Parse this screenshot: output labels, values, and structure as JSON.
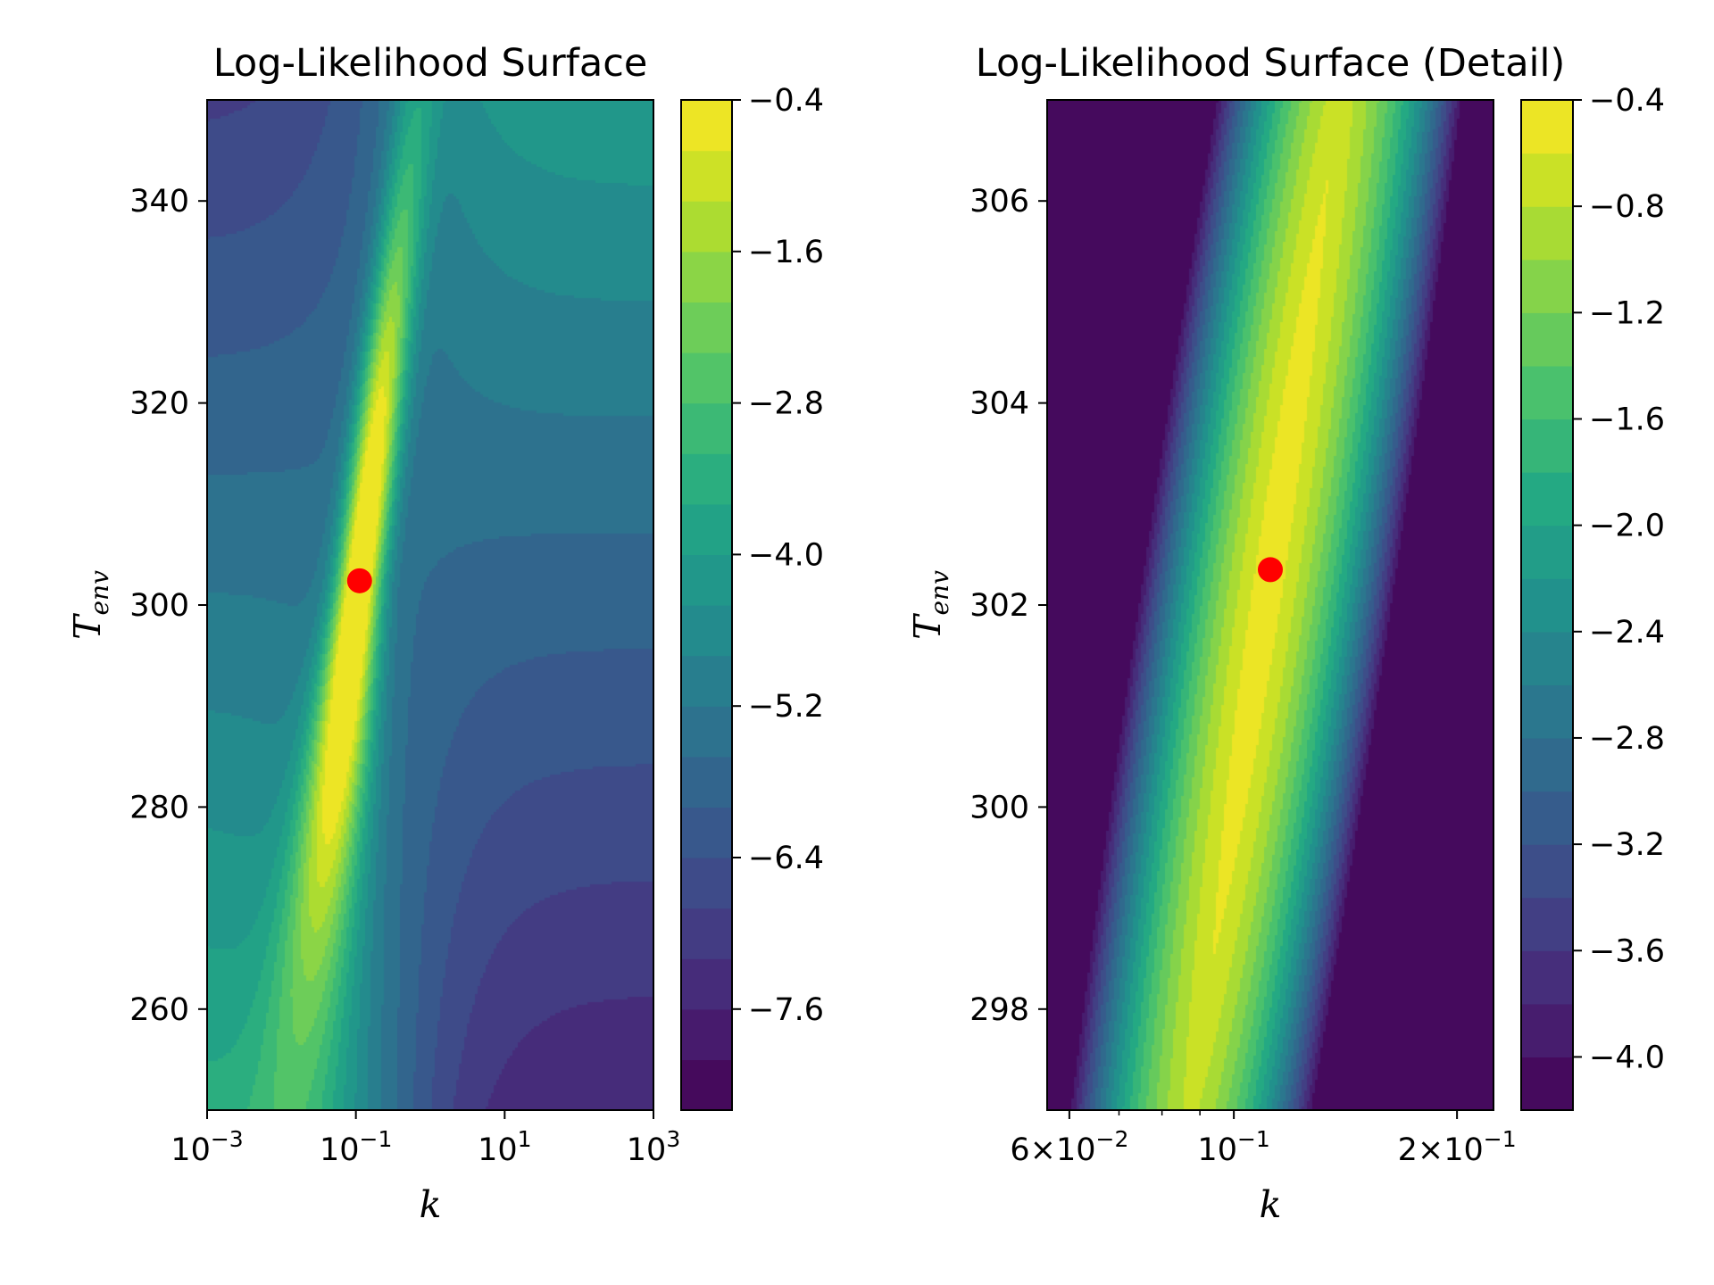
{
  "chart_data": [
    {
      "type": "contourf",
      "title": "Log-Likelihood Surface",
      "xlabel": "k",
      "ylabel": "T",
      "ylabel_sub": "env",
      "xscale": "log",
      "xlim": [
        0.001,
        1000
      ],
      "ylim": [
        250,
        350
      ],
      "xticks": [
        {
          "value": 0.001,
          "base": "10",
          "exp": "−3"
        },
        {
          "value": 0.1,
          "base": "10",
          "exp": "−1"
        },
        {
          "value": 10,
          "base": "10",
          "exp": "1"
        },
        {
          "value": 1000,
          "base": "10",
          "exp": "3"
        }
      ],
      "yticks": [
        {
          "value": 260,
          "label": "260"
        },
        {
          "value": 280,
          "label": "280"
        },
        {
          "value": 300,
          "label": "300"
        },
        {
          "value": 320,
          "label": "320"
        },
        {
          "value": 340,
          "label": "340"
        }
      ],
      "colorbar": {
        "range": [
          -8.4,
          -0.4
        ],
        "n_levels": 20,
        "ticks": [
          {
            "value": -0.4,
            "label": "−0.4"
          },
          {
            "value": -1.6,
            "label": "−1.6"
          },
          {
            "value": -2.8,
            "label": "−2.8"
          },
          {
            "value": -4.0,
            "label": "−4.0"
          },
          {
            "value": -5.2,
            "label": "−5.2"
          },
          {
            "value": -6.4,
            "label": "−6.4"
          },
          {
            "value": -7.6,
            "label": "−7.6"
          }
        ]
      },
      "marker": {
        "k": 0.112,
        "T": 302.4,
        "color": "#ff0000"
      },
      "colormap": "viridis"
    },
    {
      "type": "contourf",
      "title": "Log-Likelihood Surface (Detail)",
      "xlabel": "k",
      "ylabel": "T",
      "ylabel_sub": "env",
      "xscale": "log",
      "xlim": [
        0.056,
        0.224
      ],
      "ylim": [
        297,
        307
      ],
      "xticks": [
        {
          "value": 0.06,
          "base": "6×10",
          "exp": "−2"
        },
        {
          "value": 0.1,
          "base": "10",
          "exp": "−1"
        },
        {
          "value": 0.2,
          "base": "2×10",
          "exp": "−1"
        }
      ],
      "minor_xticks": [
        0.07,
        0.08,
        0.09
      ],
      "yticks": [
        {
          "value": 298,
          "label": "298"
        },
        {
          "value": 300,
          "label": "300"
        },
        {
          "value": 302,
          "label": "302"
        },
        {
          "value": 304,
          "label": "304"
        },
        {
          "value": 306,
          "label": "306"
        }
      ],
      "colorbar": {
        "range": [
          -4.2,
          -0.4
        ],
        "n_levels": 19,
        "ticks": [
          {
            "value": -0.4,
            "label": "−0.4"
          },
          {
            "value": -0.8,
            "label": "−0.8"
          },
          {
            "value": -1.2,
            "label": "−1.2"
          },
          {
            "value": -1.6,
            "label": "−1.6"
          },
          {
            "value": -2.0,
            "label": "−2.0"
          },
          {
            "value": -2.4,
            "label": "−2.4"
          },
          {
            "value": -2.8,
            "label": "−2.8"
          },
          {
            "value": -3.2,
            "label": "−3.2"
          },
          {
            "value": -3.6,
            "label": "−3.6"
          },
          {
            "value": -4.0,
            "label": "−4.0"
          }
        ]
      },
      "marker": {
        "k": 0.112,
        "T": 302.35,
        "color": "#ff0000"
      },
      "colormap": "viridis"
    }
  ]
}
